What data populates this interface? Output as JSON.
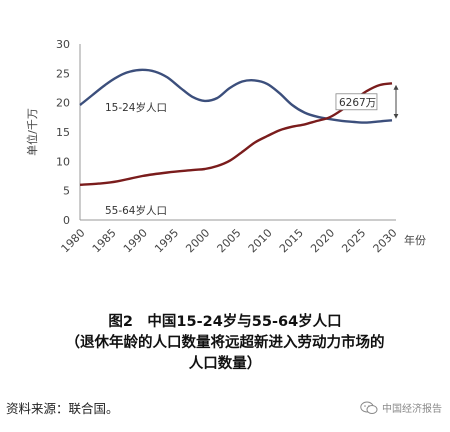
{
  "chart_data": {
    "type": "line",
    "x": [
      1980,
      1985,
      1990,
      1995,
      2000,
      2005,
      2010,
      2015,
      2020,
      2025,
      2030
    ],
    "xlabel": "年份",
    "ylabel": "单位/千万",
    "ylim": [
      0,
      30
    ],
    "yticks": [
      0,
      5,
      10,
      15,
      20,
      25,
      30
    ],
    "xlim": [
      1980,
      2030
    ],
    "grid": false,
    "series": [
      {
        "name": "15-24岁人口",
        "color": "#3c4f7c",
        "points": [
          [
            1980,
            19.6
          ],
          [
            1982,
            21.3
          ],
          [
            1984,
            23.0
          ],
          [
            1986,
            24.4
          ],
          [
            1988,
            25.3
          ],
          [
            1990,
            25.6
          ],
          [
            1992,
            25.3
          ],
          [
            1994,
            24.3
          ],
          [
            1996,
            22.6
          ],
          [
            1998,
            21.0
          ],
          [
            2000,
            20.3
          ],
          [
            2002,
            20.8
          ],
          [
            2004,
            22.5
          ],
          [
            2006,
            23.6
          ],
          [
            2008,
            23.8
          ],
          [
            2010,
            23.2
          ],
          [
            2012,
            21.6
          ],
          [
            2014,
            19.6
          ],
          [
            2016,
            18.3
          ],
          [
            2018,
            17.6
          ],
          [
            2020,
            17.2
          ],
          [
            2022,
            16.9
          ],
          [
            2024,
            16.7
          ],
          [
            2026,
            16.6
          ],
          [
            2028,
            16.8
          ],
          [
            2030,
            17.0
          ]
        ]
      },
      {
        "name": "55-64岁人口",
        "color": "#7a1c1c",
        "points": [
          [
            1980,
            6.0
          ],
          [
            1983,
            6.2
          ],
          [
            1986,
            6.6
          ],
          [
            1990,
            7.5
          ],
          [
            1994,
            8.1
          ],
          [
            1998,
            8.5
          ],
          [
            2000,
            8.7
          ],
          [
            2002,
            9.2
          ],
          [
            2004,
            10.1
          ],
          [
            2006,
            11.6
          ],
          [
            2008,
            13.2
          ],
          [
            2010,
            14.3
          ],
          [
            2012,
            15.3
          ],
          [
            2014,
            15.9
          ],
          [
            2016,
            16.3
          ],
          [
            2018,
            16.9
          ],
          [
            2020,
            17.5
          ],
          [
            2022,
            18.8
          ],
          [
            2024,
            20.5
          ],
          [
            2026,
            22.0
          ],
          [
            2028,
            23.0
          ],
          [
            2030,
            23.3
          ]
        ]
      }
    ],
    "annotation": {
      "text": "6267万",
      "x": 2030,
      "from": 17.0,
      "to": 23.3
    }
  },
  "series_labels": {
    "young": "15-24岁人口",
    "old": "55-64岁人口"
  },
  "caption": {
    "line1": "图2　中国15-24岁与55-64岁人口",
    "line2": "（退休年龄的人口数量将远超新进入劳动力市场的",
    "line3": "人口数量）"
  },
  "source": "资料来源：联合国。",
  "watermark": {
    "text": "中国经济报告",
    "icon": "wechat-icon"
  }
}
